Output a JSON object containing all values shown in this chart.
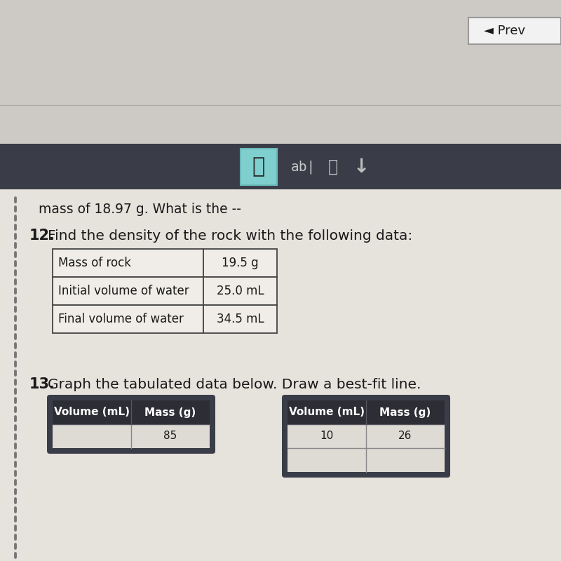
{
  "bg_top_color": "#c8c5c0",
  "bg_mid_color": "#c0bdb8",
  "toolbar_bg": "#3d3d45",
  "page_bg": "#e8e5e0",
  "prev_button_text": "◄ Prev",
  "prev_button_bg": "#f0f0f0",
  "prev_button_border": "#888888",
  "question_11_text": "mass of 18.97 g. What is the --",
  "question_12_label": "12.",
  "question_12_rest": " Find the density of the rock with the following data:",
  "table_rows": [
    [
      "Mass of rock",
      "19.5 g"
    ],
    [
      "Initial volume of water",
      "25.0 mL"
    ],
    [
      "Final volume of water",
      "34.5 mL"
    ]
  ],
  "question_13_label": "13.",
  "question_13_rest": " Graph the tabulated data below. Draw a best-fit line.",
  "table2_headers": [
    "Volume (mL)",
    "Mass (g)"
  ],
  "table2_data": [
    [
      "",
      "85"
    ]
  ],
  "table3_headers": [
    "Volume (mL)",
    "Mass (g)"
  ],
  "table3_data": [
    [
      "10",
      "26"
    ],
    [
      "",
      ""
    ]
  ],
  "hand_icon_bg": "#7ecfce",
  "hand_icon_border": "#6ab8b8",
  "text_color": "#1a1a1a",
  "table_border_color": "#444444",
  "table_header_bg": "#2d2d35",
  "table_header_border": "#4a4a55",
  "dotted_line_color": "#777777",
  "toolbar_icon_color": "#cccccc",
  "toolbar_text_color": "#dddddd"
}
